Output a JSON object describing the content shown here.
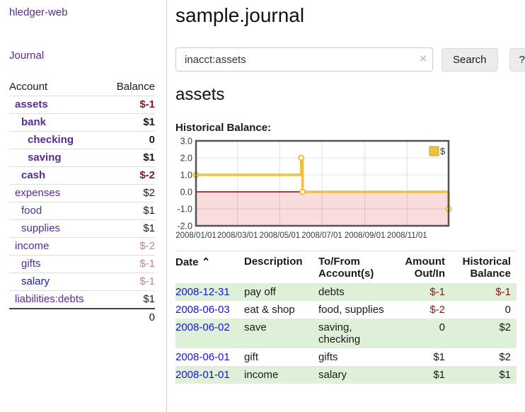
{
  "colors": {
    "link_purple": "#552d90",
    "link_blue": "#1414dd",
    "negative_dark": "#8b1515",
    "negative_soft": "#c08484",
    "row_green": "#dff0d8",
    "chart_series_yellow": "#edc240",
    "chart_negative_bg": "#f9dcdc",
    "chart_zero_line": "#8b0000"
  },
  "sidebar": {
    "app_title": "hledger-web",
    "journal_link": "Journal",
    "accounts_header": {
      "account": "Account",
      "balance": "Balance"
    },
    "accounts": [
      {
        "name": "assets",
        "balance": "$-1"
      },
      {
        "name": "bank",
        "balance": "$1"
      },
      {
        "name": "checking",
        "balance": "0"
      },
      {
        "name": "saving",
        "balance": "$1"
      },
      {
        "name": "cash",
        "balance": "$-2"
      },
      {
        "name": "expenses",
        "balance": "$2"
      },
      {
        "name": "food",
        "balance": "$1"
      },
      {
        "name": "supplies",
        "balance": "$1"
      },
      {
        "name": "income",
        "balance": "$-2"
      },
      {
        "name": "gifts",
        "balance": "$-1"
      },
      {
        "name": "salary",
        "balance": "$-1"
      },
      {
        "name": "liabilities:debts",
        "balance": "$1"
      }
    ],
    "total_balance": "0"
  },
  "main": {
    "page_title": "sample.journal",
    "search": {
      "value": "inacct:assets",
      "clear_icon": "×",
      "search_button": "Search",
      "help_button": "?"
    },
    "account_heading": "assets",
    "chart_label": "Historical Balance:",
    "register": {
      "headers": {
        "date": "Date",
        "sort_icon": "⌃",
        "description": "Description",
        "accounts": "To/From Account(s)",
        "amount": "Amount Out/In",
        "historical": "Historical Balance"
      },
      "rows": [
        {
          "date": "2008-12-31",
          "description": "pay off",
          "accounts": "debts",
          "amount": "$-1",
          "historical": "$-1"
        },
        {
          "date": "2008-06-03",
          "description": "eat & shop",
          "accounts": "food, supplies",
          "amount": "$-2",
          "historical": "0"
        },
        {
          "date": "2008-06-02",
          "description": "save",
          "accounts": "saving, checking",
          "amount": "0",
          "historical": "$2"
        },
        {
          "date": "2008-06-01",
          "description": "gift",
          "accounts": "gifts",
          "amount": "$1",
          "historical": "$2"
        },
        {
          "date": "2008-01-01",
          "description": "income",
          "accounts": "salary",
          "amount": "$1",
          "historical": "$1"
        }
      ]
    }
  },
  "chart_data": {
    "type": "line",
    "step": true,
    "title": "Historical Balance:",
    "series": [
      {
        "name": "$",
        "color": "#edc240",
        "points": [
          {
            "date": "2008-01-01",
            "value": 1
          },
          {
            "date": "2008-06-01",
            "value": 2
          },
          {
            "date": "2008-06-03",
            "value": 0
          },
          {
            "date": "2008-12-31",
            "value": -1
          }
        ]
      }
    ],
    "xlim": [
      "2008-01-01",
      "2008-12-31"
    ],
    "ylim": [
      -2,
      3
    ],
    "yticks": [
      "3.0",
      "2.0",
      "1.0",
      "0.0",
      "-1.0",
      "-2.0"
    ],
    "xticks": [
      {
        "date": "2008-01-01",
        "label": "2008/01/01"
      },
      {
        "date": "2008-03-01",
        "label": "2008/03/01"
      },
      {
        "date": "2008-05-01",
        "label": "2008/05/01"
      },
      {
        "date": "2008-07-01",
        "label": "2008/07/01"
      },
      {
        "date": "2008-09-01",
        "label": "2008/09/01"
      },
      {
        "date": "2008-11-01",
        "label": "2008/11/01"
      }
    ],
    "legend": {
      "label": "$",
      "position": "top-right"
    },
    "grid": true,
    "negative_region_color": "#f9dcdc",
    "zero_line_color": "#8b0000"
  }
}
